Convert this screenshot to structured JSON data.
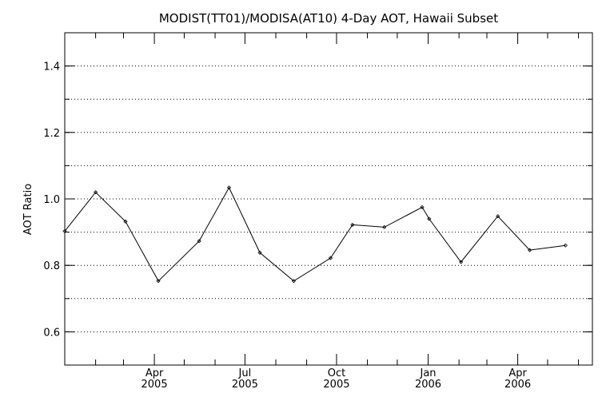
{
  "chart_data": {
    "type": "line",
    "title": "MODIST(TT01)/MODISA(AT10) 4-Day AOT, Hawaii Subset",
    "xlabel": "",
    "ylabel": "AOT Ratio",
    "ylim": [
      0.5,
      1.5
    ],
    "xlim": [
      "2005-01-01",
      "2006-06-15"
    ],
    "yticks": [
      {
        "value": 0.6,
        "label": "0.6"
      },
      {
        "value": 0.8,
        "label": "0.8"
      },
      {
        "value": 1.0,
        "label": "1.0"
      },
      {
        "value": 1.2,
        "label": "1.2"
      },
      {
        "value": 1.4,
        "label": "1.4"
      }
    ],
    "ygrid": [
      0.6,
      0.7,
      0.8,
      0.9,
      1.0,
      1.1,
      1.2,
      1.3,
      1.4
    ],
    "xticks": [
      {
        "date": "2005-04-01",
        "label": "Apr",
        "sublabel": "2005"
      },
      {
        "date": "2005-07-01",
        "label": "Jul",
        "sublabel": "2005"
      },
      {
        "date": "2005-10-01",
        "label": "Oct",
        "sublabel": "2005"
      },
      {
        "date": "2006-01-01",
        "label": "Jan",
        "sublabel": "2006"
      },
      {
        "date": "2006-04-01",
        "label": "Apr",
        "sublabel": "2006"
      }
    ],
    "x_minor_ticks": [
      "2005-02-01",
      "2005-03-01",
      "2005-05-01",
      "2005-06-01",
      "2005-08-01",
      "2005-09-01",
      "2005-11-01",
      "2005-12-01",
      "2006-02-01",
      "2006-03-01",
      "2006-05-01",
      "2006-06-01"
    ],
    "grid": true,
    "series": [
      {
        "points": [
          {
            "x": "2005-01-01",
            "y": 0.903
          },
          {
            "x": "2005-02-01",
            "y": 1.02
          },
          {
            "x": "2005-03-03",
            "y": 0.932
          },
          {
            "x": "2005-04-05",
            "y": 0.753
          },
          {
            "x": "2005-05-16",
            "y": 0.873
          },
          {
            "x": "2005-06-15",
            "y": 1.034
          },
          {
            "x": "2005-07-16",
            "y": 0.838
          },
          {
            "x": "2005-08-19",
            "y": 0.753
          },
          {
            "x": "2005-09-25",
            "y": 0.822
          },
          {
            "x": "2005-10-17",
            "y": 0.922
          },
          {
            "x": "2005-11-18",
            "y": 0.915
          },
          {
            "x": "2005-12-26",
            "y": 0.975
          },
          {
            "x": "2006-01-02",
            "y": 0.94
          },
          {
            "x": "2006-02-03",
            "y": 0.81
          },
          {
            "x": "2006-03-12",
            "y": 0.948
          },
          {
            "x": "2006-04-13",
            "y": 0.846
          },
          {
            "x": "2006-05-19",
            "y": 0.86
          }
        ]
      }
    ]
  }
}
